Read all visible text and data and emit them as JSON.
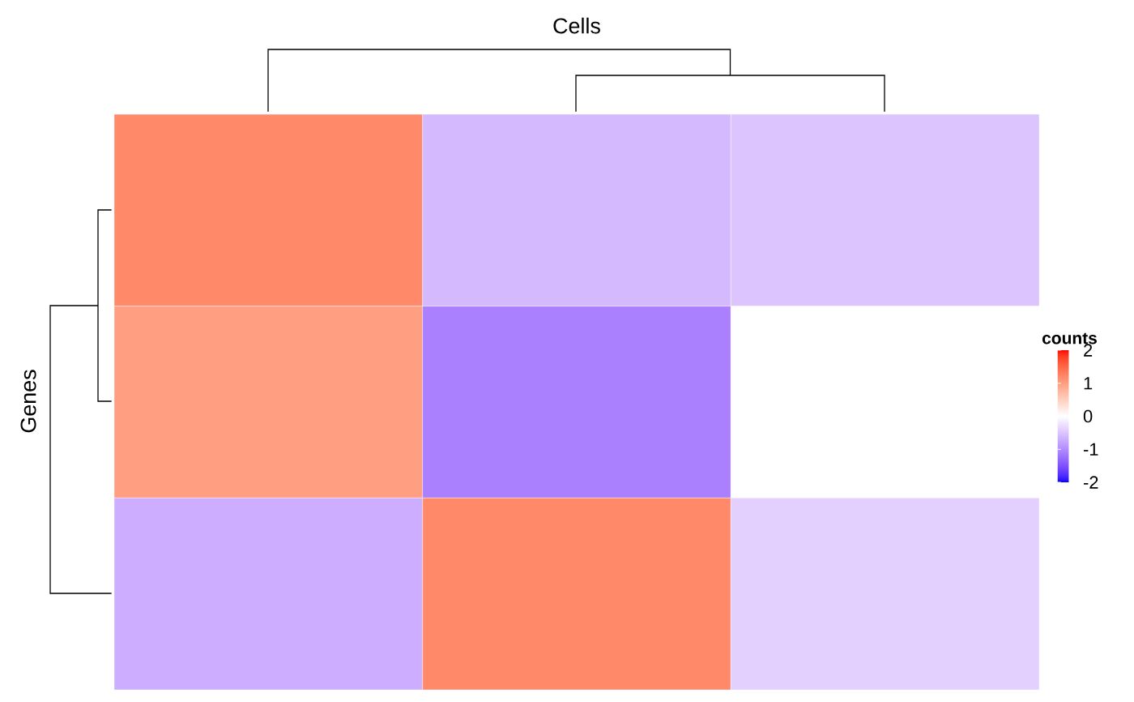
{
  "chart_data": {
    "type": "heatmap",
    "xlabel": "Cells",
    "ylabel": "Genes",
    "clabel": "counts",
    "categories": [
      null,
      null,
      null
    ],
    "y_categories": [
      null,
      null,
      null
    ],
    "cells": [
      [
        1.2,
        -0.6,
        -0.5
      ],
      [
        1.0,
        -1.1,
        0
      ],
      [
        -0.7,
        1.2,
        -0.4
      ]
    ],
    "clim": [
      -2,
      2
    ],
    "cticks": [
      -2,
      -1,
      0,
      1,
      2
    ]
  }
}
